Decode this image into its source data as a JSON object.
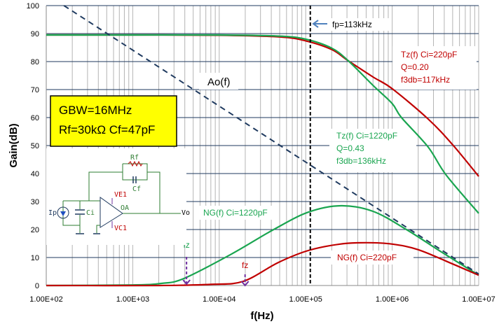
{
  "chart_data": {
    "type": "line",
    "xlabel": "f(Hz)",
    "ylabel": "Gain(dB)",
    "xscale": "log",
    "xlim": [
      100,
      10000000
    ],
    "ylim": [
      0,
      100
    ],
    "x_ticks": [
      "1.00E+02",
      "1.00E+03",
      "1.00E+04",
      "1.00E+05",
      "1.00E+06",
      "1.00E+07"
    ],
    "y_ticks": [
      "0",
      "10",
      "20",
      "30",
      "40",
      "50",
      "60",
      "70",
      "80",
      "90",
      "100"
    ],
    "grid": true,
    "series": [
      {
        "name": "Tz(f) Ci=220pF",
        "color": "#c00000",
        "style": "solid",
        "x": [
          100,
          1000,
          10000,
          50000,
          100000,
          200000,
          310000,
          600000,
          1000000,
          2600000,
          5000000,
          10000000
        ],
        "y": [
          89.5,
          89.5,
          89.4,
          88.8,
          87.4,
          84.3,
          80.3,
          74.5,
          70.3,
          59.5,
          50.3,
          39
        ]
      },
      {
        "name": "Tz(f) Ci=1220pF",
        "color": "#1aa550",
        "style": "solid",
        "x": [
          100,
          1000,
          10000,
          50000,
          100000,
          200000,
          310000,
          600000,
          1000000,
          1280000,
          2600000,
          4200000,
          10000000
        ],
        "y": [
          89.5,
          89.5,
          89.5,
          89.1,
          88,
          84.8,
          80.3,
          71.5,
          65,
          60,
          49.5,
          39.5,
          25.8
        ]
      },
      {
        "name": "NG(f) Ci=1220pF",
        "color": "#1aa550",
        "style": "solid",
        "x": [
          100,
          1000,
          2140,
          3900,
          13800,
          42600,
          107000,
          257000,
          600000,
          1460000,
          3700000,
          10000000
        ],
        "y": [
          0,
          0.2,
          0.75,
          2.5,
          11.2,
          20,
          26.2,
          28.5,
          26.5,
          20,
          12,
          3.7
        ]
      },
      {
        "name": "NG(f) Ci=220pF",
        "color": "#c00000",
        "style": "solid",
        "x": [
          100,
          2000,
          8000,
          19000,
          48000,
          107000,
          250000,
          500000,
          1000000,
          2000000,
          5000000,
          10000000
        ],
        "y": [
          0,
          0,
          0.4,
          1.5,
          8.2,
          12.5,
          14.8,
          15.3,
          14.8,
          12.8,
          7.7,
          3.7
        ]
      },
      {
        "name": "Ao(f)",
        "color": "#1f3a5f",
        "style": "dashed",
        "x": [
          160,
          10000000
        ],
        "y": [
          100,
          4.1
        ]
      }
    ],
    "markers": {
      "fp": {
        "label": "fp=113kHz",
        "x": 113000
      },
      "fz_green": {
        "label": "fz",
        "x": 4188
      },
      "fz_red": {
        "label": "fz",
        "x": 19900
      }
    },
    "annotations": {
      "ao": "Ao(f)",
      "tz220": [
        "Tz(f)  Ci=220pF",
        "Q=0.20",
        "f3db=117kHz"
      ],
      "tz1220": [
        "Tz(f)  Ci=1220pF",
        "Q=0.43",
        "f3db=136kHz"
      ],
      "ng1220": "NG(f)  Ci=1220pF",
      "ng220": "NG(f)  Ci=220pF",
      "param_box": [
        "GBW=16MHz",
        "Rf=30kΩ  Cf=47pF"
      ]
    },
    "schematic": {
      "labels": [
        "Rf",
        "Cf",
        "VE1",
        "VC1",
        "OA",
        "Vo",
        "Ip",
        "Ci"
      ]
    },
    "colors": {
      "red": "#c00000",
      "green": "#1aa550",
      "hgrid": "#1f3a5f",
      "vgrid": "#b4b4b4",
      "box": "#ffff00",
      "fz_arrow": "#7030a0"
    }
  }
}
